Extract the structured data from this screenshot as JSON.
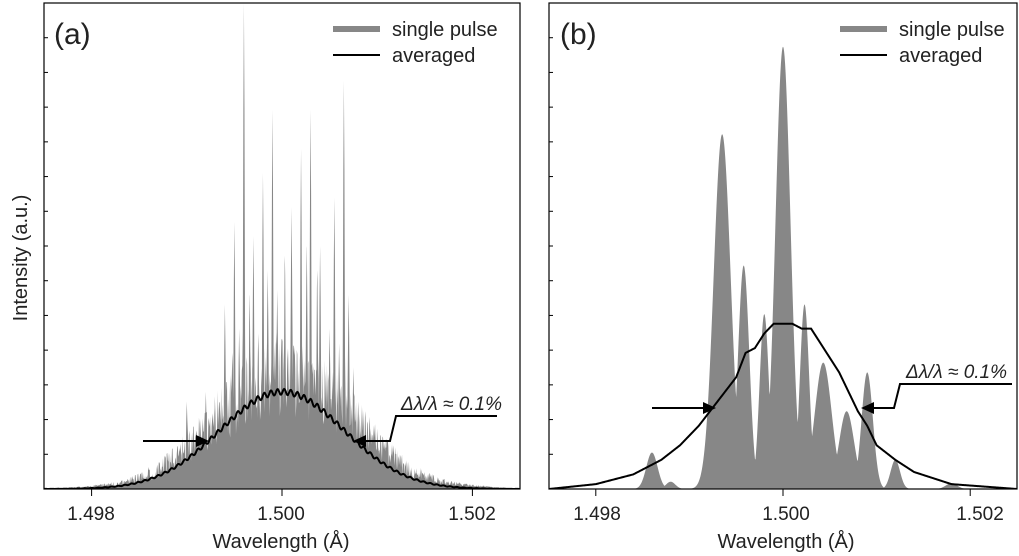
{
  "figure": {
    "ylabel": "Intensity (a.u.)",
    "xlabel": "Wavelength (Å)"
  },
  "colors": {
    "single": "#878787",
    "averaged": "#000000"
  },
  "chart_data": [
    {
      "type": "area",
      "panel_label": "(a)",
      "xlabel": "Wavelength (Å)",
      "ylabel": "Intensity (a.u.)",
      "xlim": [
        1.4975,
        1.5025
      ],
      "ylim": [
        0,
        1.0
      ],
      "xticks": [
        1.498,
        1.5,
        1.502
      ],
      "xtick_labels": [
        "1.498",
        "1.500",
        "1.502"
      ],
      "legend": [
        "single pulse",
        "averaged"
      ],
      "legend_position": "top-right",
      "annotation": {
        "text": "Δλ/λ ≈ 0.1%",
        "fwhm": [
          1.49925,
          1.50077
        ],
        "arrow_y": 0.095
      },
      "series": [
        {
          "name": "single pulse",
          "style": "filled-spikes",
          "envelope_sigma": 0.00075,
          "baseline": [
            [
              1.4975,
              0
            ],
            [
              1.4983,
              0.005
            ],
            [
              1.4987,
              0.02
            ],
            [
              1.499,
              0.05
            ],
            [
              1.4993,
              0.09
            ],
            [
              1.4996,
              0.12
            ],
            [
              1.5,
              0.15
            ],
            [
              1.5004,
              0.13
            ],
            [
              1.5007,
              0.1
            ],
            [
              1.501,
              0.06
            ],
            [
              1.5013,
              0.025
            ],
            [
              1.5017,
              0.008
            ],
            [
              1.5025,
              0
            ]
          ],
          "spikes": [
            [
              1.4986,
              0.04
            ],
            [
              1.4988,
              0.06
            ],
            [
              1.499,
              0.18
            ],
            [
              1.4991,
              0.12
            ],
            [
              1.4992,
              0.2
            ],
            [
              1.4993,
              0.11
            ],
            [
              1.4994,
              0.38
            ],
            [
              1.49948,
              0.28
            ],
            [
              1.4995,
              0.55
            ],
            [
              1.49955,
              0.33
            ],
            [
              1.4996,
              1.0
            ],
            [
              1.49966,
              0.4
            ],
            [
              1.4997,
              0.52
            ],
            [
              1.49975,
              0.32
            ],
            [
              1.4998,
              0.65
            ],
            [
              1.49985,
              0.45
            ],
            [
              1.4999,
              0.48
            ],
            [
              1.4999,
              0.78
            ],
            [
              1.49995,
              0.41
            ],
            [
              1.50003,
              0.48
            ],
            [
              1.5001,
              0.58
            ],
            [
              1.5002,
              0.7
            ],
            [
              1.50026,
              0.5
            ],
            [
              1.5003,
              0.78
            ],
            [
              1.50037,
              0.45
            ],
            [
              1.5004,
              0.5
            ],
            [
              1.5005,
              0.33
            ],
            [
              1.50055,
              0.6
            ],
            [
              1.5006,
              0.3
            ],
            [
              1.50065,
              0.84
            ],
            [
              1.5007,
              0.4
            ],
            [
              1.50075,
              0.25
            ],
            [
              1.5008,
              0.18
            ],
            [
              1.5009,
              0.13
            ],
            [
              1.501,
              0.1
            ],
            [
              1.5011,
              0.07
            ],
            [
              1.5012,
              0.05
            ],
            [
              1.5014,
              0.03
            ]
          ]
        },
        {
          "name": "averaged",
          "style": "line",
          "gaussian": {
            "center": 1.5,
            "amplitude": 0.2,
            "sigma": 0.00065
          }
        }
      ]
    },
    {
      "type": "area",
      "panel_label": "(b)",
      "xlabel": "Wavelength (Å)",
      "xlim": [
        1.4975,
        1.5025
      ],
      "ylim": [
        0,
        1.0
      ],
      "xticks": [
        1.498,
        1.5,
        1.502
      ],
      "xtick_labels": [
        "1.498",
        "1.500",
        "1.502"
      ],
      "legend": [
        "single pulse",
        "averaged"
      ],
      "legend_position": "top-right",
      "annotation": {
        "text": "Δλ/λ ≈ 0.1%",
        "fwhm": [
          1.49932,
          1.50072
        ],
        "arrow_y": 0.175
      },
      "series": [
        {
          "name": "single pulse",
          "style": "filled-peaks",
          "peaks": [
            [
              1.4986,
              0.075,
              6e-05
            ],
            [
              1.4988,
              0.015,
              5e-05
            ],
            [
              1.49935,
              0.73,
              9e-05
            ],
            [
              1.49958,
              0.46,
              6e-05
            ],
            [
              1.4998,
              0.36,
              5e-05
            ],
            [
              1.5,
              0.91,
              8e-05
            ],
            [
              1.50023,
              0.38,
              5e-05
            ],
            [
              1.50043,
              0.26,
              9e-05
            ],
            [
              1.50068,
              0.16,
              8e-05
            ],
            [
              1.5009,
              0.24,
              6e-05
            ],
            [
              1.5012,
              0.06,
              5e-05
            ],
            [
              1.5018,
              0.012,
              6e-05
            ]
          ]
        },
        {
          "name": "averaged",
          "style": "line",
          "points": [
            [
              1.4975,
              0.0
            ],
            [
              1.498,
              0.01
            ],
            [
              1.4984,
              0.03
            ],
            [
              1.4987,
              0.06
            ],
            [
              1.4989,
              0.09
            ],
            [
              1.4991,
              0.13
            ],
            [
              1.4993,
              0.18
            ],
            [
              1.4995,
              0.23
            ],
            [
              1.4996,
              0.28
            ],
            [
              1.4997,
              0.29
            ],
            [
              1.4998,
              0.32
            ],
            [
              1.4999,
              0.34
            ],
            [
              1.5,
              0.34
            ],
            [
              1.5001,
              0.34
            ],
            [
              1.5002,
              0.33
            ],
            [
              1.5003,
              0.33
            ],
            [
              1.5004,
              0.3
            ],
            [
              1.5005,
              0.27
            ],
            [
              1.5006,
              0.24
            ],
            [
              1.5007,
              0.2
            ],
            [
              1.5008,
              0.16
            ],
            [
              1.5009,
              0.13
            ],
            [
              1.501,
              0.09
            ],
            [
              1.5012,
              0.06
            ],
            [
              1.5014,
              0.035
            ],
            [
              1.5018,
              0.01
            ],
            [
              1.5025,
              0.0
            ]
          ]
        }
      ]
    }
  ]
}
